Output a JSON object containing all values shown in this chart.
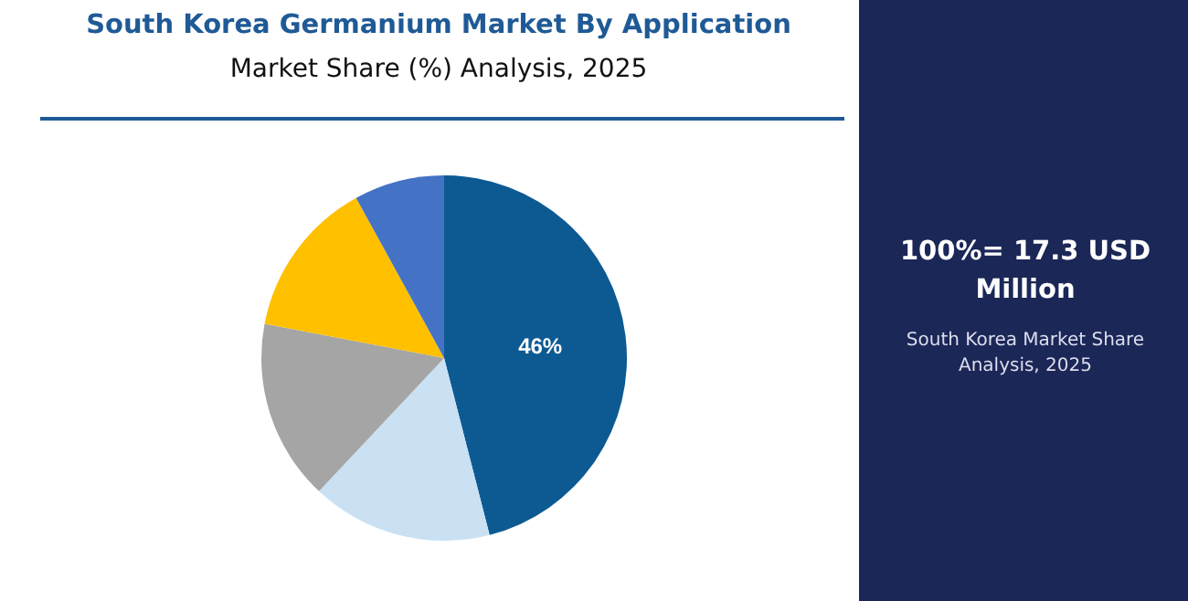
{
  "chart_data": {
    "type": "pie",
    "title": "South Korea Germanium Market By Application",
    "subtitle": "Market Share (%) Analysis, 2025",
    "categories": [
      null,
      null,
      null,
      null,
      null
    ],
    "values": [
      46,
      16,
      16,
      14,
      8
    ],
    "colors": [
      "#0d5a93",
      "#c9e1f3",
      "#a5a5a5",
      "#ffc000",
      "#4472c4"
    ],
    "value_labels": [
      "46%",
      null,
      null,
      null,
      null
    ],
    "annotations": [
      "100%= 17.3 USD Million",
      "South Korea Market Share Analysis, 2025"
    ]
  }
}
